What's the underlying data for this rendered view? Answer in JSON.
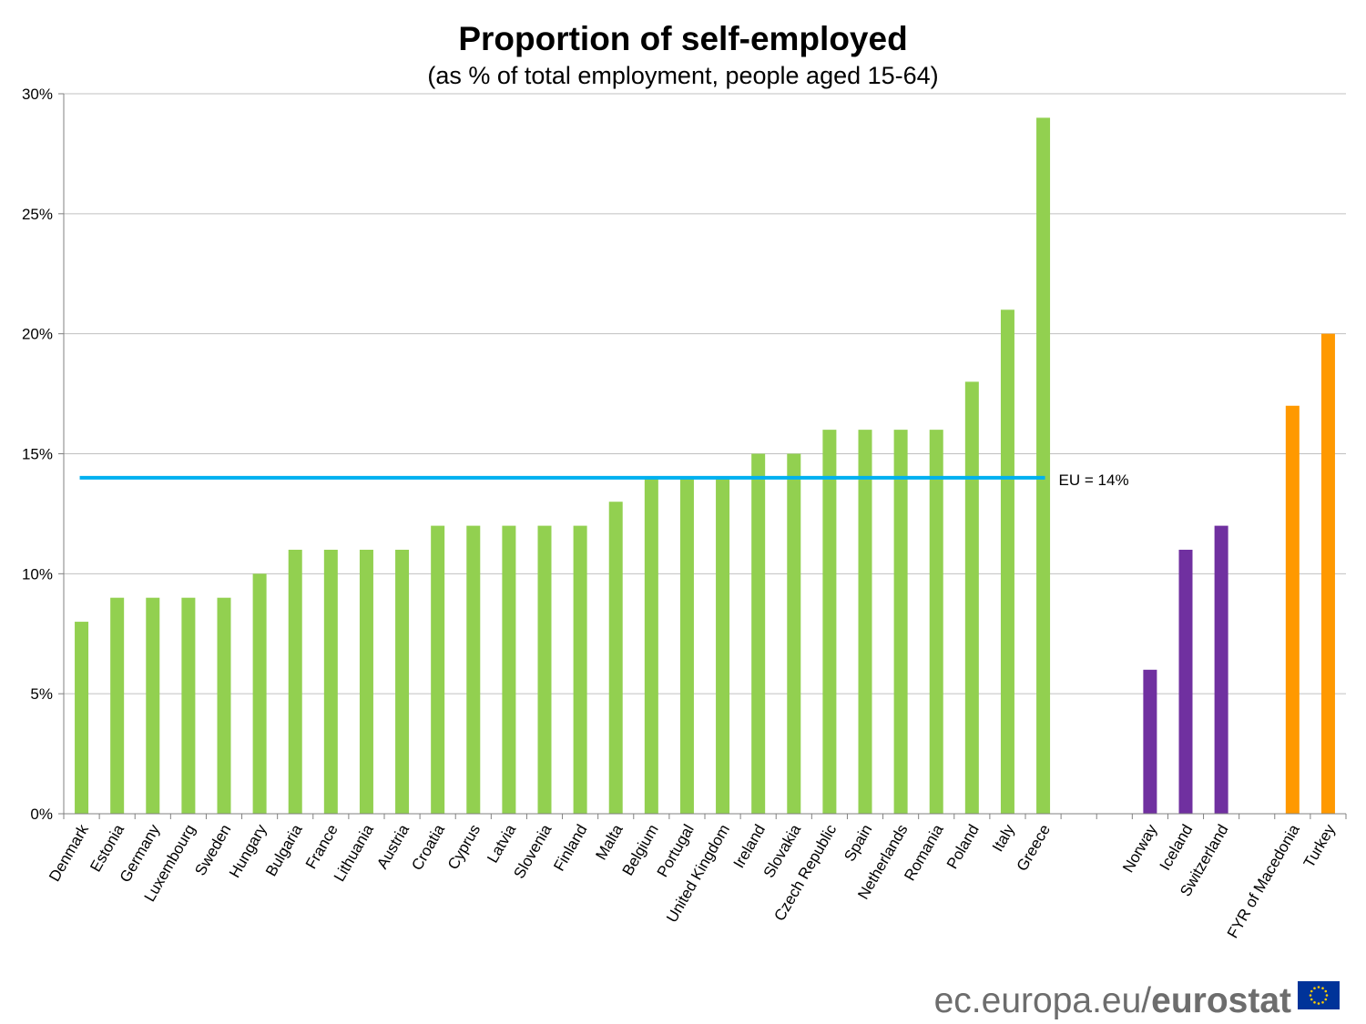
{
  "chart_data": {
    "type": "bar",
    "title": "Proportion of self-employed",
    "subtitle": "(as % of total employment, people aged 15-64)",
    "xlabel": "",
    "ylabel": "",
    "ylim": [
      0,
      30
    ],
    "y_ticks": [
      "0%",
      "5%",
      "10%",
      "15%",
      "20%",
      "25%",
      "30%"
    ],
    "grid": true,
    "legend": "none",
    "categories": [
      "Denmark",
      "Estonia",
      "Germany",
      "Luxembourg",
      "Sweden",
      "Hungary",
      "Bulgaria",
      "France",
      "Lithuania",
      "Austria",
      "Croatia",
      "Cyprus",
      "Latvia",
      "Slovenia",
      "Finland",
      "Malta",
      "Belgium",
      "Portugal",
      "United Kingdom",
      "Ireland",
      "Slovakia",
      "Czech Republic",
      "Spain",
      "Netherlands",
      "Romania",
      "Poland",
      "Italy",
      "Greece",
      "",
      "",
      "Norway",
      "Iceland",
      "Switzerland",
      "",
      "FYR of Macedonia",
      "Turkey"
    ],
    "values": [
      8,
      9,
      9,
      9,
      9,
      10,
      11,
      11,
      11,
      11,
      12,
      12,
      12,
      12,
      12,
      13,
      14,
      14,
      14,
      15,
      15,
      16,
      16,
      16,
      16,
      18,
      21,
      29,
      null,
      null,
      6,
      11,
      12,
      null,
      17,
      20
    ],
    "groups": [
      {
        "color": "#92d050",
        "categories": [
          "Denmark",
          "Estonia",
          "Germany",
          "Luxembourg",
          "Sweden",
          "Hungary",
          "Bulgaria",
          "France",
          "Lithuania",
          "Austria",
          "Croatia",
          "Cyprus",
          "Latvia",
          "Slovenia",
          "Finland",
          "Malta",
          "Belgium",
          "Portugal",
          "United Kingdom",
          "Ireland",
          "Slovakia",
          "Czech Republic",
          "Spain",
          "Netherlands",
          "Romania",
          "Poland",
          "Italy",
          "Greece"
        ]
      },
      {
        "color": "#7030a0",
        "categories": [
          "Norway",
          "Iceland",
          "Switzerland"
        ]
      },
      {
        "color": "#ff9900",
        "categories": [
          "FYR of Macedonia",
          "Turkey"
        ]
      }
    ],
    "reference_line": {
      "value": 14,
      "label": "EU = 14%",
      "color": "#00b0f0",
      "from": "Denmark",
      "to": "Greece"
    }
  },
  "footer": {
    "brand_prefix": "ec.europa.eu/",
    "brand_name": "eurostat",
    "flag_colors": {
      "field": "#003399",
      "stars": "#ffcc00"
    }
  }
}
